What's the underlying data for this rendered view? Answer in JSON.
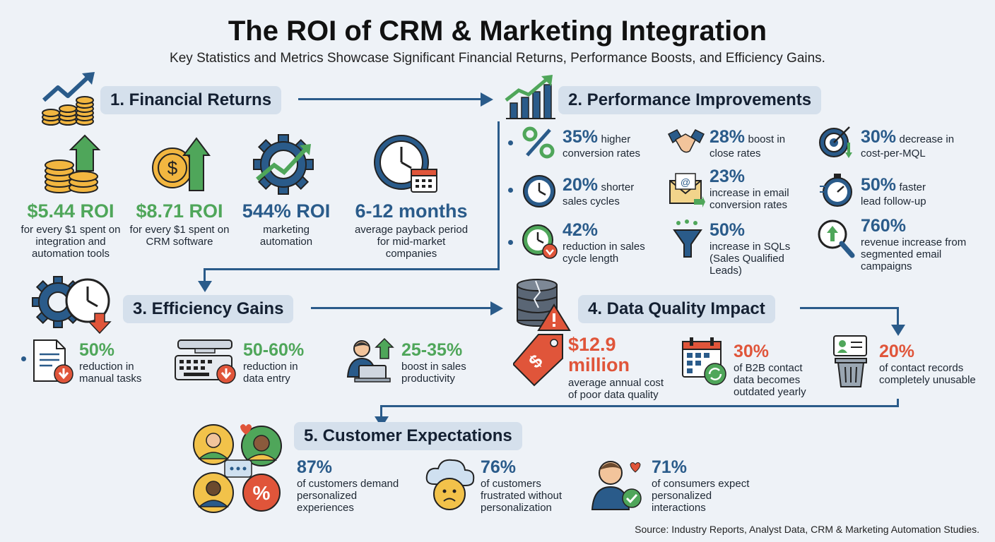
{
  "header": {
    "title": "The ROI of CRM & Marketing Integration",
    "subtitle": "Key Statistics and Metrics Showcase Significant Financial Returns, Performance Boosts, and Efficiency Gains."
  },
  "financial": {
    "heading": "1. Financial Returns",
    "items": [
      {
        "value": "$5.44 ROI",
        "desc": "for every $1 spent on integration and automation tools",
        "icon": "coins-arrow-icon"
      },
      {
        "value": "$8.71 ROI",
        "desc": "for every $1 spent on CRM software",
        "icon": "dollar-coin-arrow-icon"
      },
      {
        "value": "544% ROI",
        "desc": "marketing automation",
        "icon": "gear-chart-icon"
      },
      {
        "value": "6-12 months",
        "desc": "average payback period for mid-market companies",
        "icon": "clock-calendar-icon"
      }
    ]
  },
  "performance": {
    "heading": "2. Performance Improvements",
    "items": [
      {
        "value": "35%",
        "inline": "higher",
        "desc": "conversion rates",
        "icon": "percent-icon"
      },
      {
        "value": "28%",
        "inline": "boost in",
        "desc": "close rates",
        "icon": "handshake-icon"
      },
      {
        "value": "30%",
        "inline": "decrease in",
        "desc": "cost-per-MQL",
        "icon": "target-icon"
      },
      {
        "value": "20%",
        "inline": "shorter",
        "desc": "sales cycles",
        "icon": "clock-icon"
      },
      {
        "value": "23%",
        "inline": "",
        "desc": "increase in email conversion rates",
        "icon": "email-icon"
      },
      {
        "value": "50%",
        "inline": "faster",
        "desc": "lead follow-up",
        "icon": "stopwatch-icon"
      },
      {
        "value": "42%",
        "inline": "",
        "desc": "reduction in sales cycle length",
        "icon": "clock-down-icon"
      },
      {
        "value": "50%",
        "inline": "",
        "desc": "increase in SQLs (Sales Qualified Leads)",
        "icon": "funnel-icon"
      },
      {
        "value": "760%",
        "inline": "",
        "desc": "revenue increase from segmented email campaigns",
        "icon": "magnifier-icon"
      }
    ]
  },
  "efficiency": {
    "heading": "3. Efficiency Gains",
    "items": [
      {
        "value": "50%",
        "desc": "reduction in manual tasks",
        "icon": "document-icon"
      },
      {
        "value": "50-60%",
        "desc": "reduction in data entry",
        "icon": "keyboard-icon"
      },
      {
        "value": "25-35%",
        "desc": "boost in sales productivity",
        "icon": "person-laptop-icon"
      }
    ]
  },
  "dataquality": {
    "heading": "4. Data Quality Impact",
    "items": [
      {
        "value": "$12.9 million",
        "desc": "average annual cost of poor data quality",
        "icon": "price-tag-icon"
      },
      {
        "value": "30%",
        "desc": "of B2B contact data becomes outdated yearly",
        "icon": "calendar-refresh-icon"
      },
      {
        "value": "20%",
        "desc": "of contact records completely unusable",
        "icon": "trash-card-icon"
      }
    ]
  },
  "customer": {
    "heading": "5. Customer Expectations",
    "items": [
      {
        "value": "87%",
        "desc": "of customers demand personalized experiences",
        "icon": "customers-icon"
      },
      {
        "value": "76%",
        "desc": "of customers frustrated without personalization",
        "icon": "sad-cloud-icon"
      },
      {
        "value": "71%",
        "desc": "of consumers expect personalized interactions",
        "icon": "person-check-icon"
      }
    ]
  },
  "source": "Source: Industry Reports, Analyst Data, CRM & Marketing Automation Studies.",
  "colors": {
    "green": "#4fa65a",
    "blue": "#2a5b8a",
    "red": "#e0553a",
    "heading_bg": "#d5e0ec",
    "background": "#eef2f7"
  }
}
